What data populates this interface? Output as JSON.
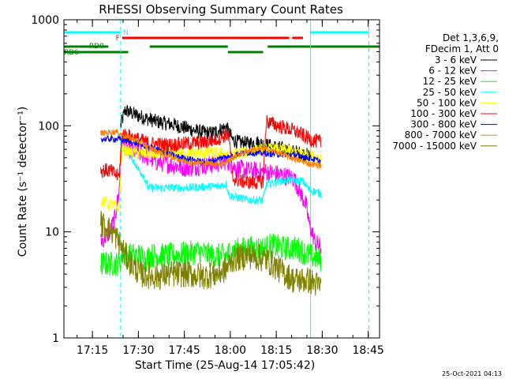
{
  "chart_data": {
    "type": "line",
    "title": "RHESSI Observing Summary Count Rates",
    "xlabel": "Start Time (25-Aug-14 17:05:42)",
    "ylabel": "Count Rate (s⁻¹ detector⁻¹)",
    "x_unit": "minutes since 17:05:42",
    "xlim": [
      0,
      103
    ],
    "ylim": [
      1,
      1000
    ],
    "y_scale": "log",
    "x_ticks": [
      {
        "label": "17:15",
        "value": 9.3
      },
      {
        "label": "17:30",
        "value": 24.3
      },
      {
        "label": "17:45",
        "value": 39.3
      },
      {
        "label": "18:00",
        "value": 54.3
      },
      {
        "label": "18:15",
        "value": 69.3
      },
      {
        "label": "18:30",
        "value": 84.3
      },
      {
        "label": "18:45",
        "value": 99.3
      }
    ],
    "y_ticks": [
      {
        "label": "1",
        "value": 1
      },
      {
        "label": "10",
        "value": 10
      },
      {
        "label": "100",
        "value": 100
      },
      {
        "label": "1000",
        "value": 1000
      }
    ],
    "legend": {
      "placement": "top-right",
      "header": [
        "Det 1,3,6,9,",
        "FDecim 1, Att 0"
      ]
    },
    "vertical_lines": [
      {
        "x": 18.5,
        "style": "dashed",
        "color": "#00ffff"
      },
      {
        "x": 80.5,
        "style": "solid",
        "color": "#00ffff"
      },
      {
        "x": 99.5,
        "style": "dashed",
        "color": "#00ffff"
      }
    ],
    "flag_bars": [
      {
        "label": "N",
        "color": "#00ffff",
        "segments": [
          [
            0,
            18.5
          ],
          [
            80.5,
            99.5
          ]
        ]
      },
      {
        "label": "F",
        "color": "#ff0000",
        "segments": [
          [
            19.0,
            73.5
          ],
          [
            74.5,
            78.0
          ]
        ]
      },
      {
        "label": "RD0",
        "color": "#008000",
        "segments": [
          [
            0,
            14.5
          ],
          [
            28.0,
            53.5
          ],
          [
            66.5,
            103
          ]
        ]
      },
      {
        "label": "RD6",
        "color": "#008000",
        "segments": [
          [
            0,
            21.0
          ],
          [
            53.5,
            65.0
          ]
        ]
      }
    ],
    "timestamp": "25-Oct-2021 04:13",
    "series": [
      {
        "name": "3 - 6 keV",
        "color": "#000000",
        "x_range": [
          18.5,
          80.5
        ],
        "jitter": 0.07,
        "points": [
          [
            18.5,
            100
          ],
          [
            20,
            140
          ],
          [
            24,
            125
          ],
          [
            30,
            110
          ],
          [
            36,
            102
          ],
          [
            40,
            95
          ],
          [
            44,
            88
          ],
          [
            48,
            85
          ],
          [
            51,
            92
          ],
          [
            52,
            95
          ],
          [
            53,
            97
          ],
          [
            54,
            85
          ],
          [
            55,
            74
          ],
          [
            57,
            70
          ],
          [
            60,
            68
          ],
          [
            63,
            70
          ],
          [
            66,
            66
          ],
          [
            70,
            62
          ],
          [
            74,
            58
          ],
          [
            77,
            55
          ],
          [
            80.5,
            52
          ]
        ]
      },
      {
        "name": "6 - 12 keV",
        "color": "#ff00ff",
        "x_range": [
          12,
          84
        ],
        "jitter": 0.09,
        "points": [
          [
            12,
            8
          ],
          [
            13.5,
            9
          ],
          [
            15,
            10
          ],
          [
            16.5,
            13
          ],
          [
            18,
            24
          ],
          [
            19,
            68
          ],
          [
            21,
            60
          ],
          [
            25,
            55
          ],
          [
            30,
            46
          ],
          [
            35,
            43
          ],
          [
            40,
            40
          ],
          [
            45,
            42
          ],
          [
            50,
            44
          ],
          [
            53,
            47
          ],
          [
            56,
            40
          ],
          [
            60,
            38
          ],
          [
            65,
            37
          ],
          [
            70,
            35
          ],
          [
            75,
            32
          ],
          [
            77,
            24
          ],
          [
            79,
            18
          ],
          [
            80,
            12
          ],
          [
            82,
            8
          ],
          [
            84,
            7
          ]
        ]
      },
      {
        "name": "12 - 25 keV",
        "color": "#00ff00",
        "x_range": [
          12,
          84
        ],
        "jitter": 0.12,
        "points": [
          [
            12,
            5
          ],
          [
            18,
            5
          ],
          [
            19,
            6
          ],
          [
            25,
            6
          ],
          [
            27,
            5.5
          ],
          [
            28,
            6
          ],
          [
            36,
            6
          ],
          [
            44,
            6.5
          ],
          [
            48,
            6
          ],
          [
            53.5,
            6
          ],
          [
            54,
            6.5
          ],
          [
            60,
            7
          ],
          [
            66,
            7
          ],
          [
            67,
            7.5
          ],
          [
            72,
            7
          ],
          [
            76,
            7
          ],
          [
            80,
            6
          ],
          [
            84,
            5.5
          ]
        ]
      },
      {
        "name": "25 - 50 keV",
        "color": "#00ffff",
        "x_range": [
          18.5,
          84
        ],
        "jitter": 0.04,
        "points": [
          [
            18.5,
            65
          ],
          [
            19,
            63
          ],
          [
            22,
            52
          ],
          [
            24,
            40
          ],
          [
            26,
            34
          ],
          [
            27.5,
            26
          ],
          [
            30,
            26
          ],
          [
            40,
            26
          ],
          [
            50,
            27
          ],
          [
            53,
            28
          ],
          [
            54,
            22
          ],
          [
            60,
            20
          ],
          [
            65,
            20
          ],
          [
            66,
            28
          ],
          [
            70,
            30
          ],
          [
            74,
            31
          ],
          [
            78,
            30
          ],
          [
            80,
            25
          ],
          [
            84,
            23
          ]
        ]
      },
      {
        "name": "50 - 100 keV",
        "color": "#ffff00",
        "x_range": [
          12,
          84
        ],
        "jitter": 0.06,
        "points": [
          [
            12,
            20
          ],
          [
            15,
            18
          ],
          [
            18,
            17
          ],
          [
            19,
            60
          ],
          [
            21,
            57
          ],
          [
            26,
            55
          ],
          [
            30,
            54
          ],
          [
            35,
            55
          ],
          [
            40,
            55
          ],
          [
            45,
            56
          ],
          [
            50,
            55
          ],
          [
            53,
            54
          ],
          [
            54,
            50
          ],
          [
            56,
            55
          ],
          [
            60,
            57
          ],
          [
            66,
            60
          ],
          [
            70,
            60
          ],
          [
            74,
            58
          ],
          [
            78,
            56
          ],
          [
            80,
            52
          ],
          [
            84,
            50
          ]
        ]
      },
      {
        "name": "100 - 300 keV",
        "color": "#ff0000",
        "x_range": [
          12,
          84
        ],
        "jitter": 0.07,
        "points": [
          [
            12,
            38
          ],
          [
            15,
            38
          ],
          [
            18,
            33
          ],
          [
            19,
            85
          ],
          [
            21,
            80
          ],
          [
            24,
            75
          ],
          [
            28,
            68
          ],
          [
            34,
            66
          ],
          [
            40,
            68
          ],
          [
            46,
            70
          ],
          [
            50,
            75
          ],
          [
            53,
            82
          ],
          [
            54,
            78
          ],
          [
            55,
            32
          ],
          [
            58,
            30
          ],
          [
            62,
            29
          ],
          [
            65,
            30
          ],
          [
            66,
            110
          ],
          [
            70,
            100
          ],
          [
            74,
            92
          ],
          [
            77,
            85
          ],
          [
            80,
            75
          ],
          [
            82,
            72
          ],
          [
            84,
            70
          ]
        ]
      },
      {
        "name": "300 - 800 keV",
        "color": "#0000ff",
        "x_range": [
          12,
          84
        ],
        "jitter": 0.03,
        "points": [
          [
            12,
            75
          ],
          [
            18,
            75
          ],
          [
            24,
            68
          ],
          [
            30,
            60
          ],
          [
            36,
            52
          ],
          [
            42,
            48
          ],
          [
            46,
            45
          ],
          [
            50,
            48
          ],
          [
            53,
            52
          ],
          [
            54,
            50
          ],
          [
            56,
            54
          ],
          [
            60,
            56
          ],
          [
            65,
            55
          ],
          [
            70,
            54
          ],
          [
            75,
            53
          ],
          [
            78,
            52
          ],
          [
            80,
            50
          ],
          [
            84,
            46
          ]
        ]
      },
      {
        "name": "800 - 7000 keV",
        "color": "#ff8000",
        "x_range": [
          12,
          84
        ],
        "jitter": 0.03,
        "points": [
          [
            12,
            85
          ],
          [
            17,
            88
          ],
          [
            20,
            80
          ],
          [
            24,
            72
          ],
          [
            28,
            62
          ],
          [
            32,
            55
          ],
          [
            36,
            50
          ],
          [
            40,
            46
          ],
          [
            44,
            45
          ],
          [
            48,
            44
          ],
          [
            52,
            44
          ],
          [
            54,
            48
          ],
          [
            58,
            55
          ],
          [
            62,
            60
          ],
          [
            66,
            60
          ],
          [
            70,
            56
          ],
          [
            74,
            50
          ],
          [
            78,
            46
          ],
          [
            80,
            44
          ],
          [
            84,
            42
          ]
        ]
      },
      {
        "name": "7000 - 15000 keV",
        "color": "#808000",
        "x_range": [
          12,
          84
        ],
        "jitter": 0.13,
        "points": [
          [
            12,
            12
          ],
          [
            16,
            10
          ],
          [
            18,
            8
          ],
          [
            20,
            6
          ],
          [
            22,
            5
          ],
          [
            25,
            4
          ],
          [
            30,
            3.8
          ],
          [
            35,
            4
          ],
          [
            40,
            4
          ],
          [
            45,
            3.8
          ],
          [
            50,
            4
          ],
          [
            53,
            4.5
          ],
          [
            55,
            5.5
          ],
          [
            60,
            6
          ],
          [
            66,
            5.5
          ],
          [
            70,
            4.5
          ],
          [
            75,
            3.5
          ],
          [
            80,
            3.5
          ],
          [
            84,
            3
          ]
        ]
      }
    ]
  }
}
